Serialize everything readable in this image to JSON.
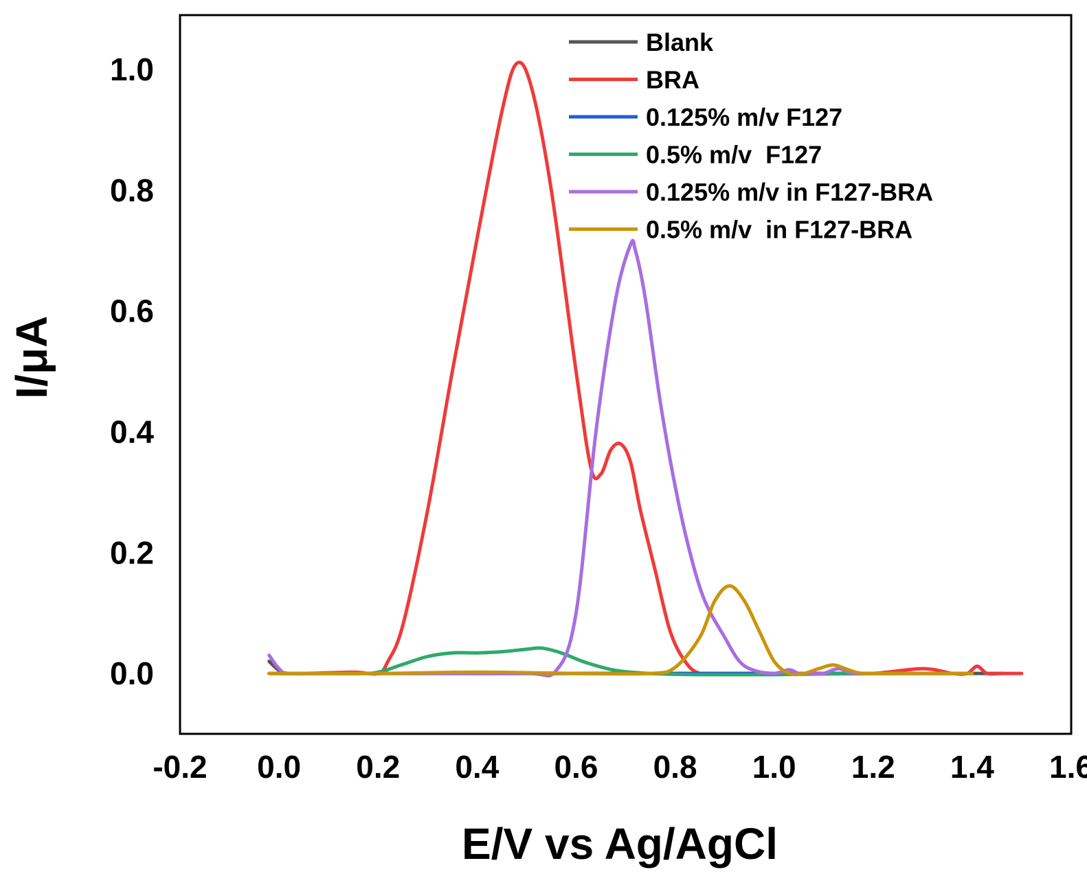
{
  "chart_data": {
    "type": "line",
    "title": "",
    "xlabel": "E/V vs Ag/AgCl",
    "ylabel": "I/μA",
    "xlim": [
      -0.2,
      1.6
    ],
    "ylim": [
      -0.1,
      1.09
    ],
    "xticks": [
      "-0.2",
      "0.0",
      "0.2",
      "0.4",
      "0.6",
      "0.8",
      "1.0",
      "1.2",
      "1.4",
      "1.6"
    ],
    "xtick_values": [
      -0.2,
      0.0,
      0.2,
      0.4,
      0.6,
      0.8,
      1.0,
      1.2,
      1.4,
      1.6
    ],
    "yticks": [
      "0.0",
      "0.2",
      "0.4",
      "0.6",
      "0.8",
      "1.0"
    ],
    "ytick_values": [
      0.0,
      0.2,
      0.4,
      0.6,
      0.8,
      1.0
    ],
    "grid": false,
    "legend_position": "top-right",
    "series": [
      {
        "name": "Blank",
        "color": "#555555",
        "x": [
          -0.02,
          0.0,
          0.02,
          0.1,
          0.2,
          0.4,
          0.6,
          0.8,
          1.0,
          1.2,
          1.4,
          1.46
        ],
        "y": [
          0.02,
          0.005,
          0.0,
          0.0,
          0.0,
          0.0,
          0.0,
          0.0,
          0.0,
          0.0,
          0.0,
          0.0
        ]
      },
      {
        "name": "BRA",
        "color": "#ee3b3b",
        "x": [
          -0.02,
          0.05,
          0.15,
          0.2,
          0.22,
          0.25,
          0.3,
          0.35,
          0.4,
          0.45,
          0.48,
          0.51,
          0.55,
          0.6,
          0.63,
          0.65,
          0.67,
          0.69,
          0.71,
          0.73,
          0.76,
          0.79,
          0.82,
          0.85,
          0.9,
          1.0,
          1.1,
          1.2,
          1.3,
          1.36,
          1.39,
          1.41,
          1.43,
          1.46,
          1.5
        ],
        "y": [
          0.0,
          0.0,
          0.002,
          0.0,
          0.02,
          0.08,
          0.27,
          0.5,
          0.72,
          0.93,
          1.01,
          0.97,
          0.8,
          0.5,
          0.34,
          0.33,
          0.37,
          0.38,
          0.35,
          0.27,
          0.17,
          0.07,
          0.02,
          0.0,
          0.0,
          0.0,
          0.0,
          0.0,
          0.008,
          0.0,
          0.0,
          0.012,
          0.0,
          0.0,
          0.0
        ]
      },
      {
        "name": "0.125% m/v F127",
        "color": "#1f5fd6",
        "x": [
          -0.02,
          0.2,
          0.4,
          0.6,
          0.8,
          1.0,
          1.2,
          1.4
        ],
        "y": [
          0.0,
          0.0,
          0.0,
          0.0,
          0.0,
          0.0,
          0.0,
          0.0
        ]
      },
      {
        "name": "0.5% m/v  F127",
        "color": "#2eaa6a",
        "x": [
          -0.02,
          0.15,
          0.2,
          0.25,
          0.3,
          0.35,
          0.4,
          0.45,
          0.5,
          0.53,
          0.57,
          0.62,
          0.68,
          0.75,
          0.85,
          1.0,
          1.2,
          1.4
        ],
        "y": [
          0.0,
          0.0,
          0.002,
          0.015,
          0.028,
          0.034,
          0.034,
          0.036,
          0.04,
          0.042,
          0.034,
          0.018,
          0.005,
          0.0,
          -0.002,
          -0.002,
          0.0,
          0.0
        ]
      },
      {
        "name": "0.125% m/v in F127-BRA",
        "color": "#a86ee0",
        "x": [
          -0.02,
          0.0,
          0.02,
          0.1,
          0.3,
          0.5,
          0.56,
          0.6,
          0.64,
          0.68,
          0.71,
          0.72,
          0.74,
          0.77,
          0.8,
          0.83,
          0.86,
          0.9,
          0.93,
          0.96,
          1.0,
          1.03,
          1.05,
          1.07,
          1.1,
          1.13,
          1.16,
          1.2,
          1.4
        ],
        "y": [
          0.03,
          0.008,
          0.0,
          0.0,
          0.0,
          0.0,
          0.005,
          0.1,
          0.4,
          0.62,
          0.71,
          0.7,
          0.62,
          0.45,
          0.31,
          0.2,
          0.12,
          0.06,
          0.02,
          0.005,
          0.0,
          0.006,
          0.0,
          0.0,
          0.0,
          0.008,
          0.0,
          0.0,
          0.0
        ]
      },
      {
        "name": "0.5% m/v  in F127-BRA",
        "color": "#c9950c",
        "x": [
          -0.02,
          0.2,
          0.4,
          0.6,
          0.75,
          0.8,
          0.85,
          0.88,
          0.91,
          0.94,
          0.97,
          1.0,
          1.03,
          1.06,
          1.09,
          1.12,
          1.15,
          1.18,
          1.25,
          1.4
        ],
        "y": [
          0.0,
          0.0,
          0.002,
          0.0,
          0.0,
          0.01,
          0.06,
          0.12,
          0.145,
          0.12,
          0.07,
          0.02,
          0.0,
          0.0,
          0.008,
          0.014,
          0.006,
          0.0,
          0.0,
          0.0
        ]
      }
    ]
  }
}
